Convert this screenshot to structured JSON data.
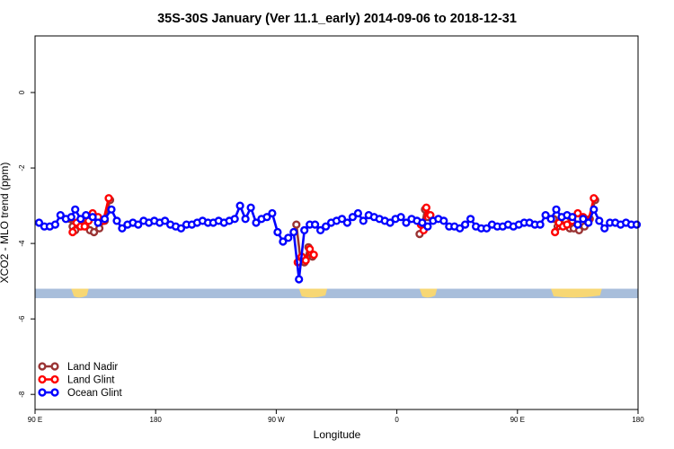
{
  "chart_data": {
    "type": "line",
    "title": "35S-30S January (Ver 11.1_early)   2014-09-06 to 2018-12-31",
    "xlabel": "Longitude",
    "ylabel": "XCO2 - MLO trend (ppm)",
    "xlim": [
      90,
      540
    ],
    "ylim": [
      -8.4,
      1.5
    ],
    "xticks": [
      {
        "value": 90,
        "label": "90 E"
      },
      {
        "value": 180,
        "label": "180"
      },
      {
        "value": 270,
        "label": "90 W"
      },
      {
        "value": 360,
        "label": "0"
      },
      {
        "value": 450,
        "label": "90 E"
      },
      {
        "value": 540,
        "label": "180"
      }
    ],
    "yticks": [
      {
        "value": 0,
        "label": "0"
      },
      {
        "value": -2,
        "label": "-2"
      },
      {
        "value": -4,
        "label": "-4"
      },
      {
        "value": -6,
        "label": "-6"
      },
      {
        "value": -8,
        "label": "-8"
      }
    ],
    "grid": false,
    "legend_position": "bottom-left",
    "landmask": {
      "y_band": [
        -5.45,
        -5.2
      ],
      "ocean_color": "#a8bedb",
      "land_color": "#f7d774",
      "land_segments": [
        [
          117,
          130
        ],
        [
          287,
          308
        ],
        [
          377,
          390
        ],
        [
          475,
          513
        ]
      ]
    },
    "series": [
      {
        "name": "Land Nadir",
        "color": "#993333",
        "points": [
          [
            116,
            -3.35
          ],
          [
            118,
            -3.55
          ],
          [
            120,
            -3.65
          ],
          [
            124,
            -3.5
          ],
          [
            128,
            -3.35
          ],
          [
            131,
            -3.65
          ],
          [
            134,
            -3.7
          ],
          [
            138,
            -3.6
          ],
          [
            142,
            -3.4
          ],
          [
            146,
            -2.85
          ],
          null,
          [
            285,
            -3.5
          ],
          [
            288,
            -4.4
          ],
          [
            291,
            -4.5
          ],
          [
            294,
            -4.1
          ],
          [
            297,
            -4.35
          ],
          null,
          [
            377,
            -3.75
          ],
          [
            379,
            -3.5
          ],
          [
            381,
            -3.1
          ],
          [
            383,
            -3.3
          ],
          null,
          [
            477,
            -3.35
          ],
          [
            480,
            -3.55
          ],
          [
            483,
            -3.5
          ],
          [
            486,
            -3.4
          ],
          [
            489,
            -3.6
          ],
          [
            492,
            -3.6
          ],
          [
            496,
            -3.65
          ],
          [
            500,
            -3.55
          ],
          [
            504,
            -3.35
          ],
          [
            508,
            -2.85
          ]
        ]
      },
      {
        "name": "Land Glint",
        "color": "#ff0000",
        "points": [
          [
            118,
            -3.7
          ],
          [
            121,
            -3.45
          ],
          [
            124,
            -3.55
          ],
          [
            127,
            -3.55
          ],
          [
            130,
            -3.4
          ],
          [
            133,
            -3.2
          ],
          [
            137,
            -3.3
          ],
          [
            141,
            -3.4
          ],
          [
            145,
            -2.8
          ],
          null,
          [
            286,
            -4.5
          ],
          [
            289,
            -4.35
          ],
          [
            292,
            -4.45
          ],
          [
            295,
            -4.15
          ],
          [
            298,
            -4.3
          ],
          null,
          [
            378,
            -3.5
          ],
          [
            380,
            -3.65
          ],
          [
            382,
            -3.05
          ],
          [
            385,
            -3.25
          ],
          null,
          [
            478,
            -3.7
          ],
          [
            481,
            -3.45
          ],
          [
            484,
            -3.55
          ],
          [
            487,
            -3.5
          ],
          [
            491,
            -3.4
          ],
          [
            495,
            -3.2
          ],
          [
            499,
            -3.3
          ],
          [
            503,
            -3.4
          ],
          [
            507,
            -2.8
          ]
        ]
      },
      {
        "name": "Ocean Glint",
        "color": "#0000ff",
        "points": [
          [
            93,
            -3.45
          ],
          [
            97,
            -3.55
          ],
          [
            101,
            -3.55
          ],
          [
            105,
            -3.5
          ],
          [
            109,
            -3.25
          ],
          [
            113,
            -3.35
          ],
          [
            117,
            -3.3
          ],
          [
            120,
            -3.1
          ],
          [
            124,
            -3.35
          ],
          [
            128,
            -3.25
          ],
          [
            133,
            -3.3
          ],
          [
            137,
            -3.45
          ],
          [
            142,
            -3.35
          ],
          [
            147,
            -3.1
          ],
          [
            151,
            -3.4
          ],
          [
            155,
            -3.6
          ],
          [
            159,
            -3.5
          ],
          [
            163,
            -3.45
          ],
          [
            167,
            -3.5
          ],
          [
            171,
            -3.4
          ],
          [
            175,
            -3.45
          ],
          [
            179,
            -3.4
          ],
          [
            183,
            -3.45
          ],
          [
            187,
            -3.4
          ],
          [
            191,
            -3.5
          ],
          [
            195,
            -3.55
          ],
          [
            199,
            -3.6
          ],
          [
            203,
            -3.5
          ],
          [
            207,
            -3.5
          ],
          [
            211,
            -3.45
          ],
          [
            215,
            -3.4
          ],
          [
            219,
            -3.45
          ],
          [
            223,
            -3.45
          ],
          [
            227,
            -3.4
          ],
          [
            231,
            -3.45
          ],
          [
            235,
            -3.4
          ],
          [
            239,
            -3.35
          ],
          [
            243,
            -3.0
          ],
          [
            247,
            -3.35
          ],
          [
            251,
            -3.05
          ],
          [
            255,
            -3.45
          ],
          [
            259,
            -3.35
          ],
          [
            263,
            -3.3
          ],
          [
            267,
            -3.2
          ],
          [
            271,
            -3.7
          ],
          [
            275,
            -3.95
          ],
          [
            279,
            -3.85
          ],
          [
            283,
            -3.7
          ],
          [
            287,
            -4.95
          ],
          [
            291,
            -3.65
          ],
          [
            295,
            -3.5
          ],
          [
            299,
            -3.5
          ],
          [
            303,
            -3.65
          ],
          [
            307,
            -3.55
          ],
          [
            311,
            -3.45
          ],
          [
            315,
            -3.4
          ],
          [
            319,
            -3.35
          ],
          [
            323,
            -3.45
          ],
          [
            327,
            -3.3
          ],
          [
            331,
            -3.2
          ],
          [
            335,
            -3.4
          ],
          [
            339,
            -3.25
          ],
          [
            343,
            -3.3
          ],
          [
            347,
            -3.35
          ],
          [
            351,
            -3.4
          ],
          [
            355,
            -3.45
          ],
          [
            359,
            -3.35
          ],
          [
            363,
            -3.3
          ],
          [
            367,
            -3.45
          ],
          [
            371,
            -3.35
          ],
          [
            375,
            -3.4
          ],
          [
            379,
            -3.45
          ],
          [
            383,
            -3.55
          ],
          [
            387,
            -3.4
          ],
          [
            391,
            -3.35
          ],
          [
            395,
            -3.4
          ],
          [
            399,
            -3.55
          ],
          [
            403,
            -3.55
          ],
          [
            407,
            -3.6
          ],
          [
            411,
            -3.5
          ],
          [
            415,
            -3.35
          ],
          [
            419,
            -3.55
          ],
          [
            423,
            -3.6
          ],
          [
            427,
            -3.6
          ],
          [
            431,
            -3.5
          ],
          [
            435,
            -3.55
          ],
          [
            439,
            -3.55
          ],
          [
            443,
            -3.5
          ],
          [
            447,
            -3.55
          ],
          [
            451,
            -3.5
          ],
          [
            455,
            -3.45
          ],
          [
            459,
            -3.45
          ],
          [
            463,
            -3.5
          ],
          [
            467,
            -3.5
          ],
          [
            471,
            -3.25
          ],
          [
            475,
            -3.35
          ],
          [
            479,
            -3.1
          ],
          [
            483,
            -3.3
          ],
          [
            487,
            -3.25
          ],
          [
            491,
            -3.3
          ],
          [
            495,
            -3.5
          ],
          [
            499,
            -3.35
          ],
          [
            503,
            -3.45
          ],
          [
            507,
            -3.1
          ],
          [
            511,
            -3.4
          ],
          [
            515,
            -3.6
          ],
          [
            519,
            -3.45
          ],
          [
            523,
            -3.45
          ],
          [
            527,
            -3.5
          ],
          [
            531,
            -3.45
          ],
          [
            535,
            -3.5
          ],
          [
            539,
            -3.5
          ]
        ]
      }
    ]
  }
}
